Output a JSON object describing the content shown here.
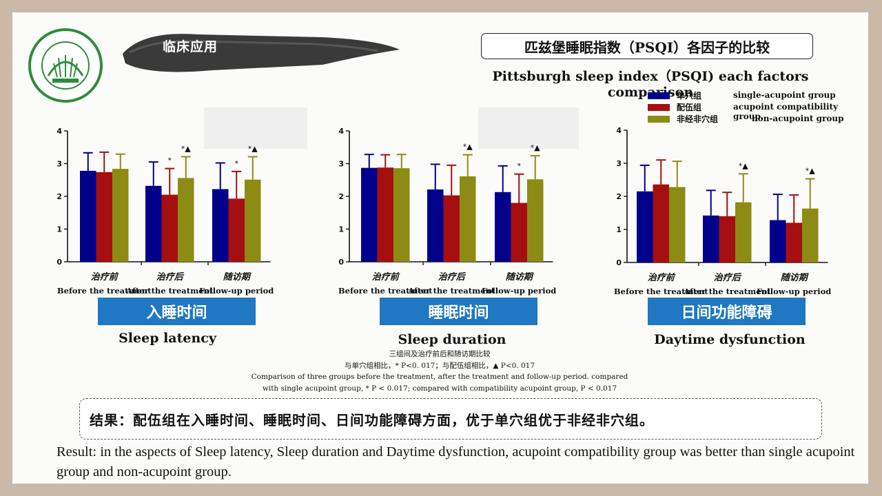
{
  "header": {
    "section": "临床应用",
    "title_cn": "匹兹堡睡眠指数（PSQI）各因子的比较",
    "title_en": "Pittsburgh sleep index（PSQI) each factors comparison"
  },
  "legend": [
    {
      "cn": "单穴组",
      "en": "single-acupoint group",
      "color": "#00008b"
    },
    {
      "cn": "配伍组",
      "en": "acupoint compatibility group",
      "color": "#a50f0f"
    },
    {
      "cn": "非经非穴组",
      "en": "non-acupoint group",
      "color": "#8c8c14"
    }
  ],
  "panels": [
    {
      "badge": "入睡时间",
      "title_en": "Sleep latency"
    },
    {
      "badge": "睡眠时间",
      "title_en": "Sleep duration"
    },
    {
      "badge": "日间功能障碍",
      "title_en": "Daytime dysfunction"
    }
  ],
  "chart_data": [
    {
      "type": "bar",
      "title": "入睡时间",
      "categories": [
        {
          "cn": "治疗前",
          "en": "Before the treatment"
        },
        {
          "cn": "治疗后",
          "en": "After the treatment"
        },
        {
          "cn": "随访期",
          "en": "Follow-up period"
        }
      ],
      "ylim": [
        0,
        4
      ],
      "yticks": [
        "0",
        "1",
        "2",
        "3",
        "4"
      ],
      "series": [
        {
          "name": "单穴组",
          "values": [
            2.78,
            2.32,
            2.22
          ],
          "errors": [
            0.55,
            0.73,
            0.8
          ],
          "marks": [
            "",
            "",
            ""
          ]
        },
        {
          "name": "配伍组",
          "values": [
            2.74,
            2.05,
            1.93
          ],
          "errors": [
            0.61,
            0.8,
            0.83
          ],
          "marks": [
            "",
            "*",
            "*"
          ]
        },
        {
          "name": "非经非穴组",
          "values": [
            2.84,
            2.56,
            2.51
          ],
          "errors": [
            0.45,
            0.65,
            0.7
          ],
          "marks": [
            "",
            "*▲",
            "*▲"
          ]
        }
      ]
    },
    {
      "type": "bar",
      "title": "睡眠时间",
      "categories": [
        {
          "cn": "治疗前",
          "en": "Before the treatment"
        },
        {
          "cn": "治疗后",
          "en": "After the treatment"
        },
        {
          "cn": "随访期",
          "en": "Follow-up period"
        }
      ],
      "ylim": [
        0,
        4
      ],
      "yticks": [
        "0",
        "1",
        "2",
        "3",
        "4"
      ],
      "series": [
        {
          "name": "单穴组",
          "values": [
            2.87,
            2.21,
            2.13
          ],
          "errors": [
            0.41,
            0.77,
            0.8
          ],
          "marks": [
            "",
            "",
            ""
          ]
        },
        {
          "name": "配伍组",
          "values": [
            2.88,
            2.03,
            1.8
          ],
          "errors": [
            0.39,
            0.92,
            0.88
          ],
          "marks": [
            "",
            "",
            "*"
          ]
        },
        {
          "name": "非经非穴组",
          "values": [
            2.86,
            2.61,
            2.52
          ],
          "errors": [
            0.42,
            0.66,
            0.72
          ],
          "marks": [
            "",
            "*▲",
            "*▲"
          ]
        }
      ]
    },
    {
      "type": "bar",
      "title": "日间功能障碍",
      "categories": [
        {
          "cn": "治疗前",
          "en": "Before the treatment"
        },
        {
          "cn": "治疗后",
          "en": "After the treatment"
        },
        {
          "cn": "随访期",
          "en": "Follow-up period"
        }
      ],
      "ylim": [
        0,
        4
      ],
      "yticks": [
        "0",
        "1",
        "2",
        "3",
        "4"
      ],
      "series": [
        {
          "name": "单穴组",
          "values": [
            2.15,
            1.42,
            1.28
          ],
          "errors": [
            0.79,
            0.76,
            0.78
          ],
          "marks": [
            "",
            "",
            ""
          ]
        },
        {
          "name": "配伍组",
          "values": [
            2.36,
            1.4,
            1.2
          ],
          "errors": [
            0.74,
            0.72,
            0.84
          ],
          "marks": [
            "",
            "",
            ""
          ]
        },
        {
          "name": "非经非穴组",
          "values": [
            2.28,
            1.82,
            1.63
          ],
          "errors": [
            0.78,
            0.86,
            0.9
          ],
          "marks": [
            "",
            "*▲",
            "*▲"
          ]
        }
      ]
    }
  ],
  "notes": {
    "cn1": "三组间及治疗前后和随访期比较",
    "cn2": "与单穴组相比，* P<0. 017；与配伍组相比，▲ P<0. 017",
    "en1": "Comparison of three groups before the treatment, after the treatment and follow-up period. compared",
    "en2": "with single acupoint group, * P < 0.017; compared with compatibility acupoint group, P < 0.017"
  },
  "result": {
    "cn": "结果：配伍组在入睡时间、睡眠时间、日间功能障碍方面，优于单穴组优于非经非穴组。",
    "en": "Result: in the aspects of Sleep latency, Sleep duration and Daytime dysfunction, acupoint compatibility group was better than single acupoint group and non-acupoint group."
  }
}
